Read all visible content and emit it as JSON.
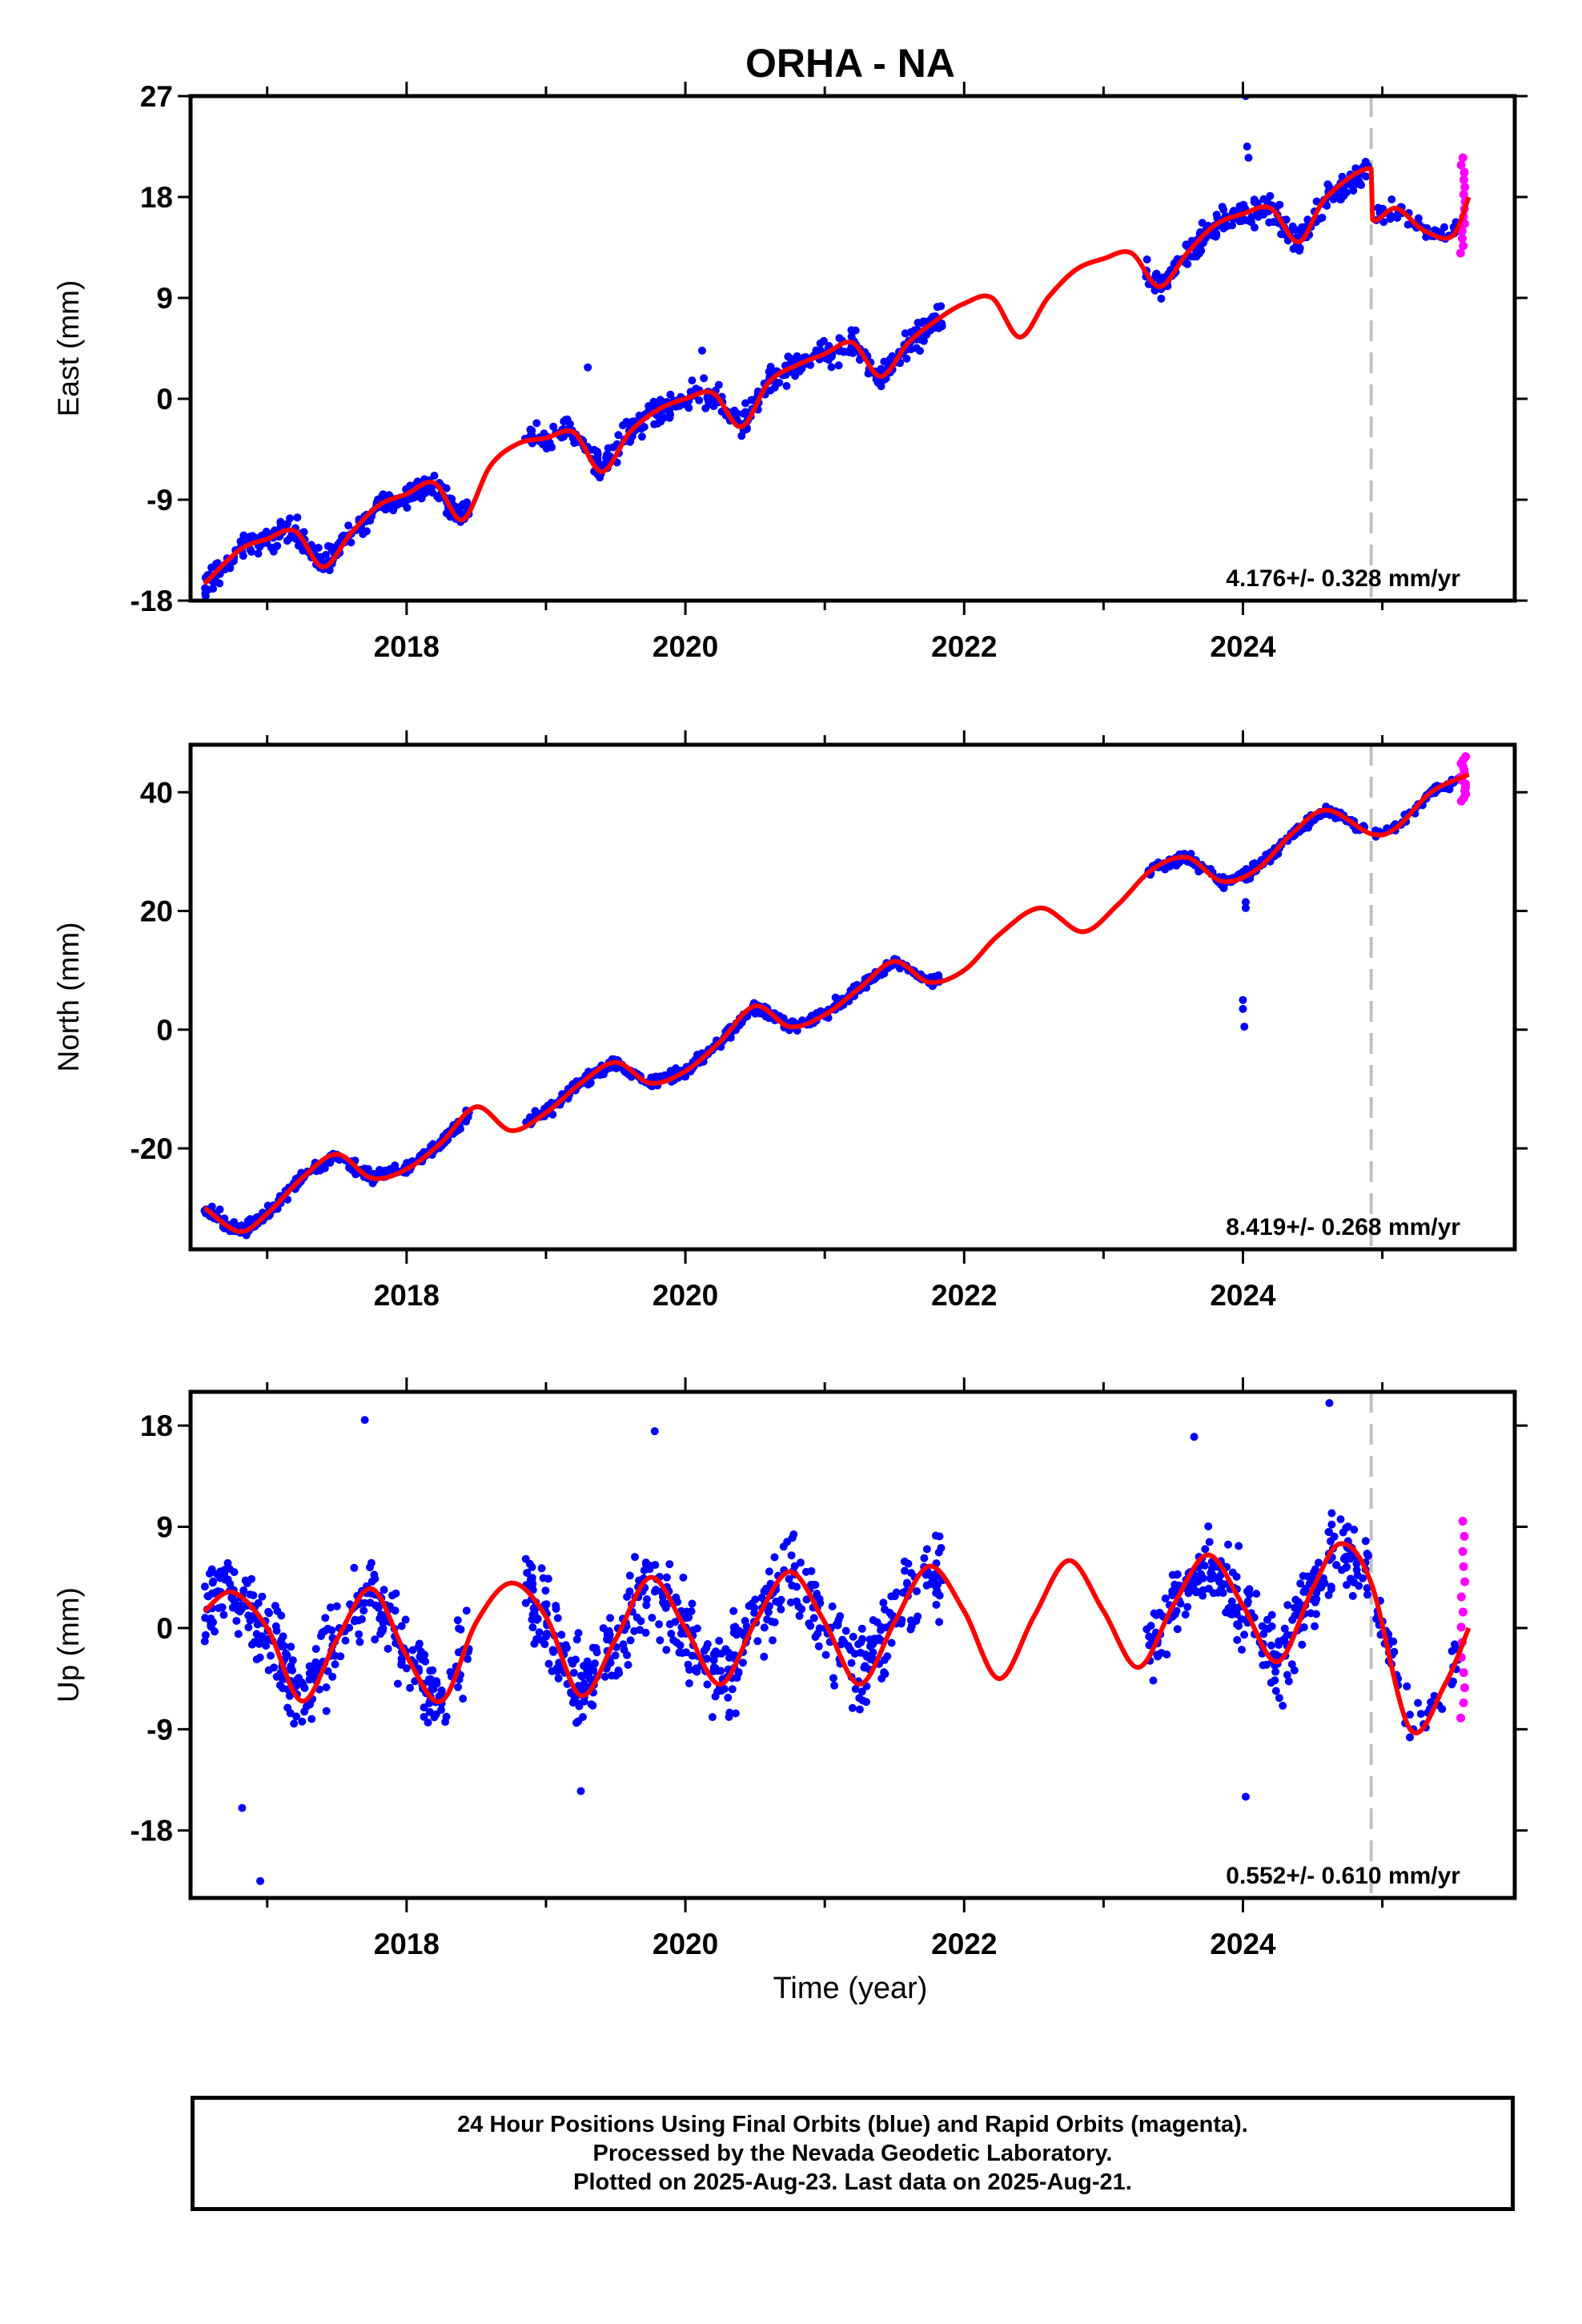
{
  "chart_data": {
    "type": "scatter",
    "title": "ORHA - NA",
    "xlabel": "Time (year)",
    "x_range": [
      2016.45,
      2025.95
    ],
    "x_ticks": [
      2018,
      2020,
      2022,
      2024
    ],
    "x_tick_labels": [
      "2018",
      "2020",
      "2022",
      "2024"
    ],
    "break_year": 2024.92,
    "panels": [
      {
        "name": "east",
        "ylabel": "East (mm)",
        "ylim": [
          -18,
          27
        ],
        "y_ticks": [
          -18,
          -9,
          0,
          9,
          18,
          27
        ],
        "y_tick_labels": [
          "-18",
          "-9",
          "0",
          "9",
          "18",
          "27"
        ],
        "rate_text": "4.176+/- 0.328 mm/yr",
        "model": {
          "x": [
            2016.55,
            2016.8,
            2017.0,
            2017.2,
            2017.4,
            2017.6,
            2017.8,
            2018.0,
            2018.2,
            2018.4,
            2018.6,
            2018.8,
            2019.0,
            2019.2,
            2019.4,
            2019.6,
            2019.8,
            2020.0,
            2020.2,
            2020.4,
            2020.6,
            2020.8,
            2021.0,
            2021.2,
            2021.4,
            2021.6,
            2021.8,
            2022.0,
            2022.2,
            2022.4,
            2022.6,
            2022.8,
            2023.0,
            2023.2,
            2023.4,
            2023.6,
            2023.8,
            2024.0,
            2024.2,
            2024.4,
            2024.6,
            2024.92,
            2024.93,
            2025.1,
            2025.3,
            2025.5,
            2025.62
          ],
          "y": [
            -16.5,
            -13.5,
            -12.5,
            -11.8,
            -15.0,
            -12.0,
            -9.5,
            -8.5,
            -7.5,
            -10.8,
            -6.0,
            -4.0,
            -3.5,
            -3.0,
            -6.5,
            -3.0,
            -1.0,
            0.0,
            0.5,
            -2.5,
            1.5,
            3.0,
            4.0,
            5.0,
            2.0,
            5.0,
            7.0,
            8.5,
            9.0,
            5.5,
            9.0,
            11.5,
            12.5,
            13.0,
            10.0,
            13.0,
            15.5,
            16.5,
            17.0,
            14.0,
            18.0,
            20.5,
            16.0,
            17.0,
            15.0,
            14.5,
            18.0
          ]
        },
        "segments": [
          {
            "x0": 2016.55,
            "x1": 2018.45,
            "trend": [
              -14.5,
              -9.0
            ],
            "amp": 1.2,
            "spread": 1.1,
            "n": 300
          },
          {
            "x0": 2018.85,
            "x1": 2021.85,
            "trend": [
              -2.0,
              5.5
            ],
            "amp": 1.8,
            "spread": 1.2,
            "n": 430
          },
          {
            "x0": 2023.3,
            "x1": 2024.9,
            "trend": [
              9.5,
              16.0
            ],
            "amp": 1.8,
            "spread": 1.2,
            "n": 240
          },
          {
            "x0": 2024.95,
            "x1": 2025.55,
            "trend": [
              15.5,
              16.0
            ],
            "amp": 1.2,
            "spread": 1.0,
            "n": 50
          }
        ],
        "outliers": [
          [
            2024.02,
            27.0
          ],
          [
            2024.03,
            22.5
          ],
          [
            2024.04,
            21.5
          ],
          [
            2019.3,
            2.8
          ],
          [
            2020.12,
            4.3
          ]
        ],
        "rapid": {
          "x0": 2025.56,
          "x1": 2025.6,
          "y0": 13.0,
          "y1": 21.5,
          "n": 14
        }
      },
      {
        "name": "north",
        "ylabel": "North (mm)",
        "ylim": [
          -37,
          48
        ],
        "y_ticks": [
          -20,
          0,
          20,
          40
        ],
        "y_tick_labels": [
          "-20",
          "0",
          "20",
          "40"
        ],
        "rate_text": "8.419+/- 0.268 mm/yr",
        "model": {
          "x": [
            2016.55,
            2016.8,
            2017.0,
            2017.25,
            2017.5,
            2017.75,
            2018.0,
            2018.25,
            2018.5,
            2018.75,
            2019.0,
            2019.25,
            2019.5,
            2019.75,
            2020.0,
            2020.25,
            2020.5,
            2020.75,
            2021.0,
            2021.25,
            2021.5,
            2021.75,
            2022.0,
            2022.25,
            2022.55,
            2022.85,
            2023.1,
            2023.35,
            2023.6,
            2023.85,
            2024.1,
            2024.35,
            2024.6,
            2024.92,
            2025.1,
            2025.35,
            2025.62
          ],
          "y": [
            -30,
            -34,
            -31,
            -25,
            -21,
            -25,
            -23.5,
            -19,
            -13,
            -17,
            -14,
            -9,
            -5.5,
            -9,
            -7,
            -2,
            4,
            0.5,
            2.5,
            7,
            11.5,
            8,
            10,
            16,
            20.5,
            16.5,
            21,
            27,
            29,
            25,
            27,
            33,
            37,
            33,
            34,
            40,
            43
          ]
        },
        "segments": [
          {
            "x0": 2016.55,
            "x1": 2018.45,
            "trend": [
              -28.5,
              -14.5
            ],
            "amp": 4.0,
            "spread": 1.0,
            "n": 320
          },
          {
            "x0": 2018.85,
            "x1": 2021.85,
            "trend": [
              -16.0,
              9.5
            ],
            "amp": 3.5,
            "spread": 1.0,
            "n": 440
          },
          {
            "x0": 2023.3,
            "x1": 2024.9,
            "trend": [
              25.0,
              35.0
            ],
            "amp": 3.5,
            "spread": 1.0,
            "n": 240
          },
          {
            "x0": 2024.95,
            "x1": 2025.55,
            "trend": [
              33.0,
              42.0
            ],
            "amp": 1.0,
            "spread": 0.8,
            "n": 50
          }
        ],
        "outliers": [
          [
            2024.0,
            5.0
          ],
          [
            2024.0,
            3.5
          ],
          [
            2024.01,
            0.5
          ],
          [
            2024.02,
            20.5
          ],
          [
            2024.02,
            21.5
          ]
        ],
        "rapid": {
          "x0": 2025.56,
          "x1": 2025.6,
          "y0": 38.5,
          "y1": 46.0,
          "n": 14
        }
      },
      {
        "name": "up",
        "ylabel": "Up (mm)",
        "ylim": [
          -24,
          21
        ],
        "y_ticks": [
          -18,
          -9,
          0,
          9,
          18
        ],
        "y_tick_labels": [
          "-18",
          "-9",
          "0",
          "9",
          "18"
        ],
        "rate_text": "0.552+/- 0.610 mm/yr",
        "model": {
          "x": [
            2016.55,
            2016.75,
            2017.0,
            2017.25,
            2017.5,
            2017.75,
            2018.0,
            2018.25,
            2018.5,
            2018.75,
            2019.0,
            2019.25,
            2019.5,
            2019.75,
            2020.0,
            2020.25,
            2020.5,
            2020.75,
            2021.0,
            2021.25,
            2021.5,
            2021.75,
            2022.0,
            2022.25,
            2022.5,
            2022.75,
            2023.0,
            2023.25,
            2023.5,
            2023.75,
            2024.0,
            2024.25,
            2024.5,
            2024.7,
            2024.92,
            2025.2,
            2025.45,
            2025.62
          ],
          "y": [
            1.5,
            3.2,
            0.0,
            -6.5,
            -1.0,
            3.5,
            -2.5,
            -6.5,
            0.5,
            4.0,
            1.0,
            -6.0,
            -1.0,
            4.5,
            0.0,
            -5.0,
            0.5,
            5.0,
            0.5,
            -5.0,
            0.5,
            5.5,
            1.5,
            -4.5,
            1.0,
            6.0,
            1.5,
            -3.5,
            2.0,
            6.5,
            2.0,
            -3.0,
            3.5,
            7.5,
            4.0,
            -9.0,
            -5.0,
            0.0
          ]
        },
        "segments": [
          {
            "x0": 2016.55,
            "x1": 2018.45,
            "trend": [
              0.0,
              0.0
            ],
            "amp": 5.0,
            "spread": 3.5,
            "n": 330
          },
          {
            "x0": 2018.85,
            "x1": 2021.85,
            "trend": [
              0.0,
              0.0
            ],
            "amp": 5.0,
            "spread": 3.8,
            "n": 500
          },
          {
            "x0": 2023.3,
            "x1": 2024.9,
            "trend": [
              1.5,
              2.0
            ],
            "amp": 5.0,
            "spread": 3.5,
            "n": 280
          },
          {
            "x0": 2024.95,
            "x1": 2025.55,
            "trend": [
              -5.0,
              -3.0
            ],
            "amp": 2.5,
            "spread": 2.5,
            "n": 50
          }
        ],
        "outliers": [
          [
            2016.95,
            -22.5
          ],
          [
            2016.82,
            -16.0
          ],
          [
            2017.7,
            18.5
          ],
          [
            2019.78,
            17.5
          ],
          [
            2024.62,
            20.0
          ],
          [
            2023.65,
            17.0
          ],
          [
            2024.02,
            -15.0
          ],
          [
            2019.25,
            -14.5
          ]
        ],
        "rapid": {
          "x0": 2025.56,
          "x1": 2025.6,
          "y0": -8.0,
          "y1": 9.5,
          "n": 14
        }
      }
    ],
    "colors": {
      "final": "#0000ff",
      "rapid": "#ff00ff",
      "model": "#ff0000",
      "break_line": "#c0c0c0"
    }
  },
  "caption": {
    "line1": "24 Hour Positions Using Final Orbits (blue) and Rapid Orbits (magenta).",
    "line2": "Processed by the Nevada Geodetic Laboratory.",
    "line3": "Plotted on 2025-Aug-23. Last data on 2025-Aug-21."
  }
}
